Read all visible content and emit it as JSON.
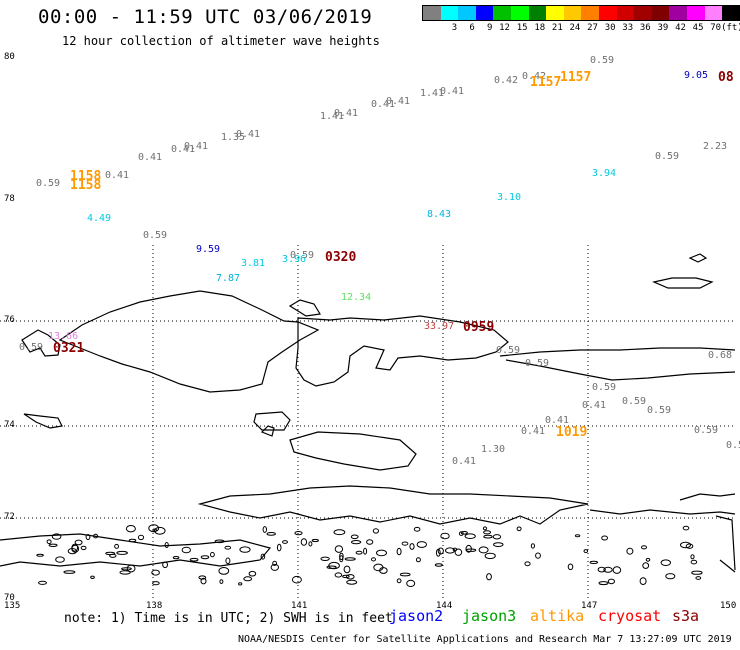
{
  "header": {
    "title": "00:00 - 11:59 UTC 03/06/2019",
    "subtitle": "12 hour collection of altimeter wave heights"
  },
  "legend": {
    "unit": "(ft)",
    "colors": [
      "#808080",
      "#00ffff",
      "#00c8ff",
      "#0000ff",
      "#00c000",
      "#00ff00",
      "#008000",
      "#ffff00",
      "#ffc800",
      "#ff8000",
      "#ff0000",
      "#d00000",
      "#a00000",
      "#800000",
      "#a000a0",
      "#ff00ff",
      "#ff80ff",
      "#000000"
    ],
    "labels": [
      "3",
      "6",
      "9",
      "12",
      "15",
      "18",
      "21",
      "24",
      "27",
      "30",
      "33",
      "36",
      "39",
      "42",
      "45",
      "70"
    ]
  },
  "axes": {
    "latitudes": [
      "80",
      "78",
      "76",
      "74",
      "72",
      "70"
    ],
    "longitudes": [
      "135",
      "138",
      "141",
      "144",
      "147",
      "150"
    ]
  },
  "observations": [
    {
      "text": "0.59",
      "color": "#707070"
    },
    {
      "text": "9.05",
      "color": "#0000c0"
    },
    {
      "text": "08",
      "color": "#8b0000",
      "big": true
    },
    {
      "text": "0.42",
      "color": "#707070"
    },
    {
      "text": "0.42",
      "color": "#707070"
    },
    {
      "text": "1157",
      "color": "#ff9900",
      "big": true
    },
    {
      "text": "1157",
      "color": "#ff9900",
      "big": true
    },
    {
      "text": "1.41",
      "color": "#707070"
    },
    {
      "text": "0.41",
      "color": "#707070"
    },
    {
      "text": "0.41",
      "color": "#707070"
    },
    {
      "text": "0.41",
      "color": "#707070"
    },
    {
      "text": "1.41",
      "color": "#707070"
    },
    {
      "text": "0.41",
      "color": "#707070"
    },
    {
      "text": "1.35",
      "color": "#707070"
    },
    {
      "text": "0.41",
      "color": "#707070"
    },
    {
      "text": "0.41",
      "color": "#707070"
    },
    {
      "text": "0.41",
      "color": "#707070"
    },
    {
      "text": "0.41",
      "color": "#707070"
    },
    {
      "text": "0.59",
      "color": "#707070"
    },
    {
      "text": "0.59",
      "color": "#707070"
    },
    {
      "text": "2.23",
      "color": "#707070"
    },
    {
      "text": "3.94",
      "color": "#00c8e0"
    },
    {
      "text": "1158",
      "color": "#ff9900",
      "big": true
    },
    {
      "text": "1158",
      "color": "#ff9900",
      "big": true
    },
    {
      "text": "0.41",
      "color": "#707070"
    },
    {
      "text": "3.10",
      "color": "#00c8e0"
    },
    {
      "text": "4.49",
      "color": "#00c8e0"
    },
    {
      "text": "8.43",
      "color": "#00b8e0"
    },
    {
      "text": "0.59",
      "color": "#707070"
    },
    {
      "text": "9.59",
      "color": "#0000c0"
    },
    {
      "text": "3.81",
      "color": "#00c8e0"
    },
    {
      "text": "0.59",
      "color": "#707070"
    },
    {
      "text": "3.96",
      "color": "#00c8e0"
    },
    {
      "text": "0320",
      "color": "#8b0000",
      "big": true
    },
    {
      "text": "7.87",
      "color": "#00b0d8"
    },
    {
      "text": "12.34",
      "color": "#60e060"
    },
    {
      "text": "33.97",
      "color": "#c04040"
    },
    {
      "text": "0959",
      "color": "#8b0000",
      "big": true
    },
    {
      "text": "13.66",
      "color": "#e080e0"
    },
    {
      "text": "0.59",
      "color": "#707070"
    },
    {
      "text": "0321",
      "color": "#8b0000",
      "big": true
    },
    {
      "text": "0.59",
      "color": "#707070"
    },
    {
      "text": "0.59",
      "color": "#707070"
    },
    {
      "text": "0.68",
      "color": "#707070"
    },
    {
      "text": "0.59",
      "color": "#707070"
    },
    {
      "text": "0.41",
      "color": "#707070"
    },
    {
      "text": "0.59",
      "color": "#707070"
    },
    {
      "text": "0.59",
      "color": "#707070"
    },
    {
      "text": "0.41",
      "color": "#707070"
    },
    {
      "text": "0.41",
      "color": "#707070"
    },
    {
      "text": "1019",
      "color": "#ff9900",
      "big": true
    },
    {
      "text": "0.59",
      "color": "#707070"
    },
    {
      "text": "0.5",
      "color": "#707070"
    },
    {
      "text": "1.30",
      "color": "#707070"
    },
    {
      "text": "0.41",
      "color": "#707070"
    }
  ],
  "note": "note: 1) Time is in UTC; 2) SWH is in feet",
  "satellites": [
    {
      "name": "jason2",
      "color": "#0000ff"
    },
    {
      "name": "jason3",
      "color": "#00a000"
    },
    {
      "name": "altika",
      "color": "#ff9900"
    },
    {
      "name": "cryosat",
      "color": "#ff0000"
    },
    {
      "name": "s3a",
      "color": "#8b0000"
    }
  ],
  "footer": "NOAA/NESDIS Center for Satellite Applications and Research   Mar  7 13:27:09 UTC 2019"
}
